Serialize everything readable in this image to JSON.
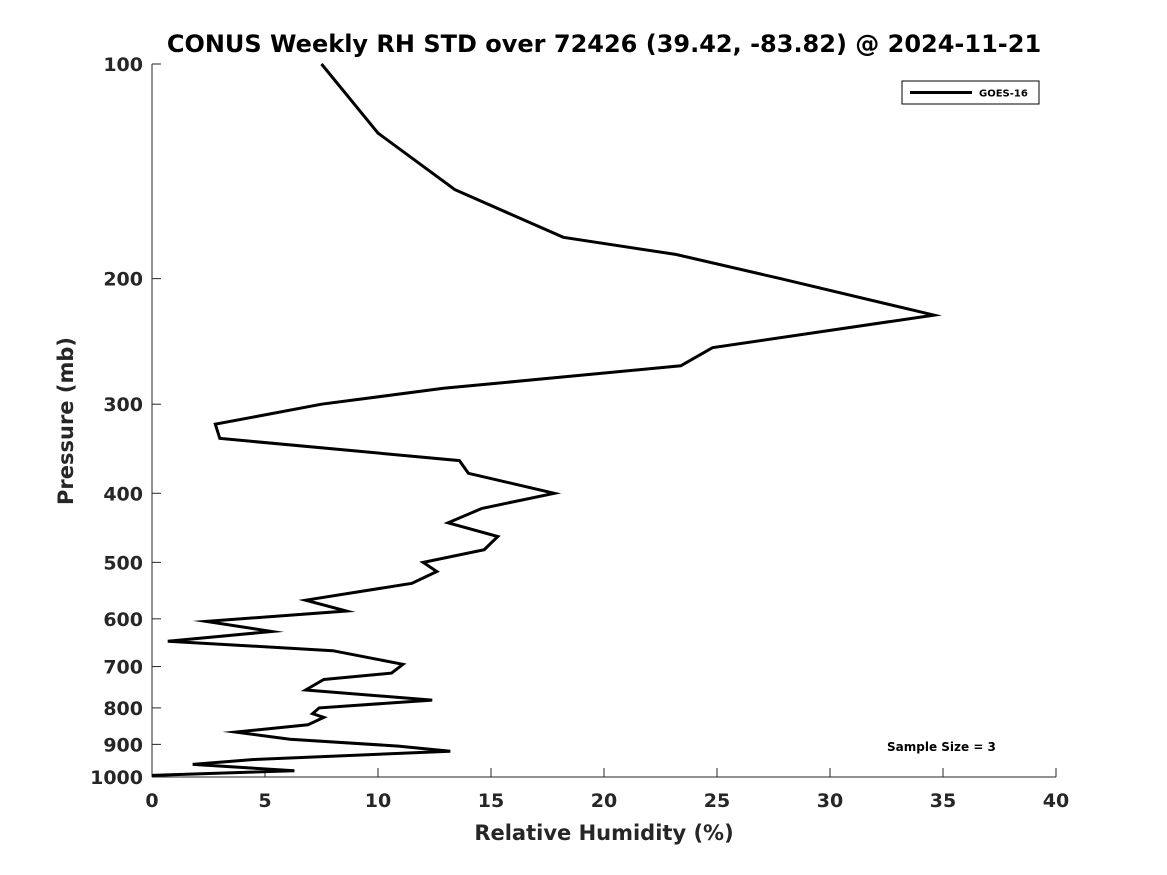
{
  "chart_data": {
    "type": "line",
    "title": "CONUS Weekly RH STD over 72426 (39.42, -83.82) @ 2024-11-21",
    "xlabel": "Relative Humidity (%)",
    "ylabel": "Pressure (mb)",
    "xlim": [
      0,
      40
    ],
    "ylim": [
      100,
      1000
    ],
    "yscale": "log",
    "y_reversed": true,
    "xticks": [
      0,
      5,
      10,
      15,
      20,
      25,
      30,
      35,
      40
    ],
    "yticks": [
      100,
      200,
      300,
      400,
      500,
      600,
      700,
      800,
      900,
      1000
    ],
    "grid": false,
    "legend_position": "top-right",
    "annotation": "Sample Size = 3",
    "series": [
      {
        "name": "GOES-16",
        "color": "#000000",
        "x": [
          7.5,
          10.0,
          13.4,
          18.2,
          23.2,
          27.8,
          34.6,
          24.8,
          23.4,
          12.9,
          7.5,
          2.8,
          3.0,
          13.6,
          14.0,
          17.8,
          14.6,
          13.1,
          15.3,
          14.7,
          12.0,
          12.6,
          11.5,
          6.8,
          8.6,
          2.4,
          5.3,
          0.7,
          8.0,
          11.1,
          10.6,
          7.6,
          6.8,
          12.4,
          7.4,
          7.1,
          7.6,
          6.9,
          3.7,
          6.1,
          10.9,
          13.2,
          4.5,
          1.8,
          6.3,
          0.0
        ],
        "y": [
          100,
          125,
          150,
          175,
          185,
          200,
          225,
          250,
          265,
          285,
          300,
          320,
          335,
          360,
          375,
          400,
          420,
          440,
          460,
          480,
          500,
          515,
          535,
          565,
          585,
          605,
          625,
          645,
          665,
          695,
          715,
          730,
          755,
          780,
          800,
          815,
          825,
          845,
          865,
          885,
          905,
          920,
          945,
          960,
          980,
          995
        ]
      }
    ]
  }
}
